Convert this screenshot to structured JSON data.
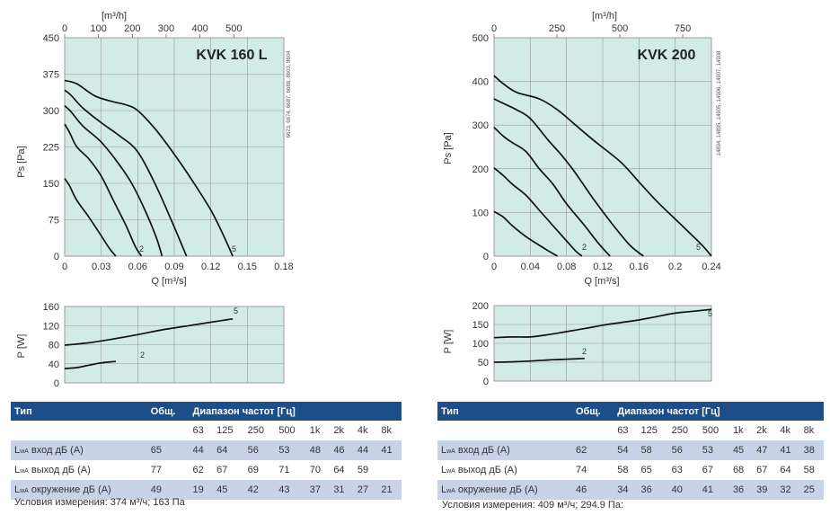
{
  "charts": [
    {
      "model": "KVK 160 L",
      "side_note": "6673, 6674, 6687, 6688, 8603, 8604",
      "pressure": {
        "x_label": "Q [m³/s]",
        "y_label": "Ps [Pa]",
        "top_label": "[m³/h]",
        "x_ticks": [
          "0",
          "0.03",
          "0.06",
          "0.09",
          "0.12",
          "0.15",
          "0.18"
        ],
        "y_ticks": [
          "0",
          "75",
          "150",
          "225",
          "300",
          "375",
          "450"
        ],
        "top_ticks": [
          "0",
          "100",
          "200",
          "300",
          "400",
          "500"
        ],
        "curve_tags": [
          "2",
          "5"
        ]
      },
      "power": {
        "y_label": "P [W]",
        "y_ticks": [
          "0",
          "40",
          "80",
          "120",
          "160"
        ],
        "curve_tags": [
          "2",
          "5"
        ]
      },
      "table": {
        "col_type": "Тип",
        "col_total": "Общ.",
        "col_range": "Диапазон частот [Гц]",
        "freqs": [
          "63",
          "125",
          "250",
          "500",
          "1k",
          "2k",
          "4k",
          "8k"
        ],
        "rows": [
          {
            "label": "вход дБ (А)",
            "total": "65",
            "values": [
              "44",
              "64",
              "56",
              "53",
              "48",
              "46",
              "44",
              "41"
            ]
          },
          {
            "label": "выход дБ (А)",
            "total": "77",
            "values": [
              "62",
              "67",
              "69",
              "71",
              "70",
              "64",
              "59",
              ""
            ]
          },
          {
            "label": "окружение дБ (А)",
            "total": "49",
            "values": [
              "19",
              "45",
              "42",
              "43",
              "37",
              "31",
              "27",
              "21"
            ]
          }
        ],
        "lwa": "L",
        "lwa_sub": "wA",
        "conditions": "Условия измерения: 374 м³/ч; 163 Па"
      }
    },
    {
      "model": "KVK 200",
      "side_note": "14894, 14895, 14905, 14906, 14907, 14908",
      "pressure": {
        "x_label": "Q [m³/s]",
        "y_label": "Ps [Pa]",
        "top_label": "[m³/h]",
        "x_ticks": [
          "0",
          "0.04",
          "0.08",
          "0.12",
          "0.16",
          "0.2",
          "0.24"
        ],
        "y_ticks": [
          "0",
          "100",
          "200",
          "300",
          "400",
          "500"
        ],
        "top_ticks": [
          "0",
          "250",
          "500",
          "750"
        ],
        "curve_tags": [
          "2",
          "5"
        ]
      },
      "power": {
        "y_label": "P [W]",
        "y_ticks": [
          "0",
          "50",
          "100",
          "150",
          "200"
        ],
        "curve_tags": [
          "2",
          "5"
        ]
      },
      "table": {
        "col_type": "Тип",
        "col_total": "Общ.",
        "col_range": "Диапазон частот [Гц]",
        "freqs": [
          "63",
          "125",
          "250",
          "500",
          "1k",
          "2k",
          "4k",
          "8k"
        ],
        "rows": [
          {
            "label": "вход дБ (А)",
            "total": "62",
            "values": [
              "54",
              "58",
              "56",
              "53",
              "45",
              "47",
              "41",
              "38"
            ]
          },
          {
            "label": "выход дБ (А)",
            "total": "74",
            "values": [
              "58",
              "65",
              "63",
              "67",
              "68",
              "67",
              "64",
              "58"
            ]
          },
          {
            "label": "окружение дБ (А)",
            "total": "46",
            "values": [
              "34",
              "36",
              "40",
              "41",
              "36",
              "39",
              "32",
              "25"
            ]
          }
        ],
        "lwa": "L",
        "lwa_sub": "wA",
        "conditions": "Условия измерения: 409 м³/ч; 294.9 Па:"
      }
    }
  ],
  "chart_data": [
    {
      "type": "line",
      "title": "KVK 160 L",
      "xlabel": "Q [m³/s]",
      "ylabel": "Ps [Pa]",
      "xlim": [
        0,
        0.18
      ],
      "ylim": [
        0,
        450
      ],
      "secondary_x": {
        "label": "[m³/h]",
        "lim": [
          0,
          648
        ]
      },
      "grid": true,
      "series": [
        {
          "name": "5",
          "x": [
            0,
            0.01,
            0.025,
            0.04,
            0.05,
            0.06,
            0.075,
            0.09,
            0.105,
            0.12,
            0.13,
            0.138
          ],
          "y": [
            362,
            355,
            330,
            318,
            312,
            300,
            260,
            210,
            155,
            95,
            45,
            0
          ]
        },
        {
          "name": "",
          "x": [
            0,
            0.005,
            0.015,
            0.03,
            0.045,
            0.06,
            0.075,
            0.09,
            0.1
          ],
          "y": [
            342,
            332,
            305,
            275,
            248,
            215,
            145,
            60,
            0
          ]
        },
        {
          "name": "",
          "x": [
            0,
            0.005,
            0.015,
            0.03,
            0.045,
            0.055,
            0.065,
            0.075,
            0.08
          ],
          "y": [
            310,
            298,
            268,
            235,
            188,
            150,
            100,
            40,
            0
          ]
        },
        {
          "name": "",
          "x": [
            0,
            0.004,
            0.01,
            0.02,
            0.03,
            0.04,
            0.05,
            0.058,
            0.063
          ],
          "y": [
            272,
            255,
            225,
            200,
            165,
            115,
            65,
            20,
            0
          ]
        },
        {
          "name": "2",
          "x": [
            0,
            0.004,
            0.01,
            0.02,
            0.03,
            0.037,
            0.042
          ],
          "y": [
            160,
            145,
            115,
            80,
            42,
            15,
            0
          ]
        }
      ]
    },
    {
      "type": "line",
      "title": "",
      "xlabel": "",
      "ylabel": "P [W]",
      "xlim": [
        0,
        0.18
      ],
      "ylim": [
        0,
        160
      ],
      "grid": true,
      "series": [
        {
          "name": "5",
          "x": [
            0,
            0.02,
            0.04,
            0.06,
            0.08,
            0.1,
            0.12,
            0.138
          ],
          "y": [
            79,
            84,
            92,
            101,
            111,
            119,
            127,
            134
          ]
        },
        {
          "name": "2",
          "x": [
            0,
            0.01,
            0.02,
            0.03,
            0.042
          ],
          "y": [
            30,
            32,
            37,
            42,
            45
          ]
        }
      ]
    },
    {
      "type": "line",
      "title": "KVK 200",
      "xlabel": "Q [m³/s]",
      "ylabel": "Ps [Pa]",
      "xlim": [
        0,
        0.24
      ],
      "ylim": [
        0,
        500
      ],
      "secondary_x": {
        "label": "[m³/h]",
        "lim": [
          0,
          864
        ]
      },
      "grid": true,
      "series": [
        {
          "name": "5",
          "x": [
            0,
            0.01,
            0.025,
            0.05,
            0.07,
            0.09,
            0.11,
            0.14,
            0.16,
            0.18,
            0.2,
            0.22,
            0.232,
            0.24
          ],
          "y": [
            413,
            395,
            375,
            360,
            335,
            300,
            265,
            215,
            170,
            125,
            85,
            45,
            20,
            0
          ]
        },
        {
          "name": "",
          "x": [
            0,
            0.01,
            0.025,
            0.04,
            0.06,
            0.075,
            0.09,
            0.11,
            0.13,
            0.15,
            0.165
          ],
          "y": [
            360,
            350,
            335,
            315,
            265,
            230,
            190,
            130,
            75,
            25,
            0
          ]
        },
        {
          "name": "",
          "x": [
            0,
            0.01,
            0.02,
            0.035,
            0.05,
            0.065,
            0.08,
            0.1,
            0.115,
            0.128
          ],
          "y": [
            295,
            275,
            260,
            240,
            200,
            165,
            120,
            70,
            30,
            0
          ]
        },
        {
          "name": "",
          "x": [
            0,
            0.01,
            0.02,
            0.035,
            0.05,
            0.065,
            0.08,
            0.09,
            0.097
          ],
          "y": [
            202,
            185,
            165,
            140,
            105,
            70,
            35,
            12,
            0
          ]
        },
        {
          "name": "2",
          "x": [
            0,
            0.01,
            0.02,
            0.035,
            0.05,
            0.06,
            0.07
          ],
          "y": [
            102,
            90,
            70,
            45,
            25,
            12,
            0
          ]
        }
      ]
    },
    {
      "type": "line",
      "title": "",
      "xlabel": "",
      "ylabel": "P [W]",
      "xlim": [
        0,
        0.24
      ],
      "ylim": [
        0,
        200
      ],
      "grid": true,
      "series": [
        {
          "name": "5",
          "x": [
            0,
            0.02,
            0.04,
            0.06,
            0.08,
            0.1,
            0.12,
            0.14,
            0.16,
            0.18,
            0.2,
            0.22,
            0.24
          ],
          "y": [
            115,
            117,
            117,
            123,
            131,
            139,
            148,
            155,
            162,
            171,
            180,
            185,
            190
          ]
        },
        {
          "name": "2",
          "x": [
            0,
            0.02,
            0.04,
            0.06,
            0.07,
            0.1
          ],
          "y": [
            50,
            51,
            53,
            56,
            57,
            60
          ]
        }
      ]
    }
  ]
}
